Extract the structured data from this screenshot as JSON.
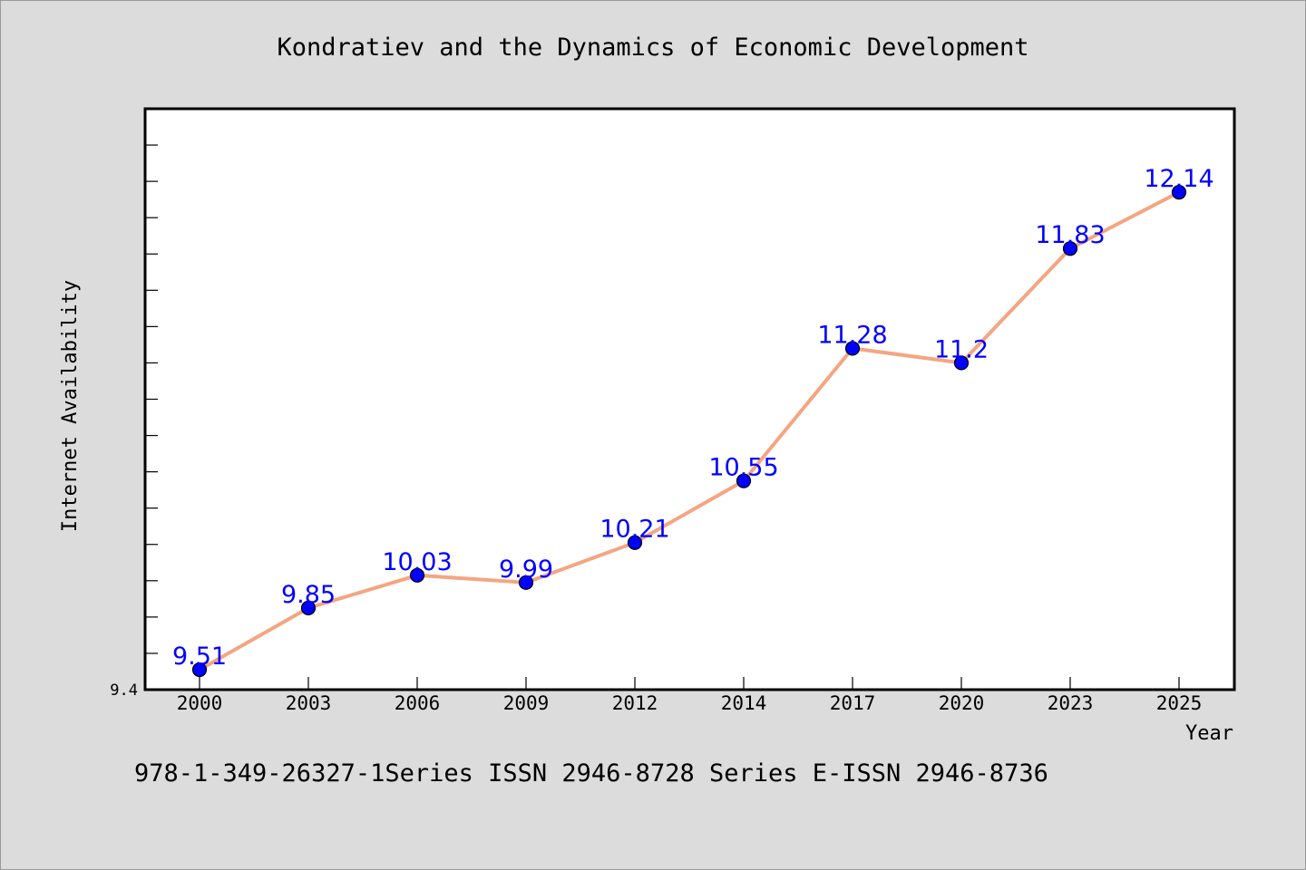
{
  "chart_data": {
    "type": "line",
    "title": "Kondratiev and the Dynamics of Economic Development",
    "xlabel": "Year",
    "ylabel": "Internet Availability",
    "categories": [
      "2000",
      "2003",
      "2006",
      "2009",
      "2012",
      "2014",
      "2017",
      "2020",
      "2023",
      "2025"
    ],
    "series": [
      {
        "values": [
          9.51,
          9.85,
          10.03,
          9.99,
          10.21,
          10.55,
          11.28,
          11.2,
          11.83,
          12.14
        ],
        "labels": [
          "9.51",
          "9.85",
          "10.03",
          "9.99",
          "10.21",
          "10.55",
          "11.28",
          "11.2",
          "11.83",
          "12.14"
        ]
      }
    ],
    "ylim": [
      9.4,
      12.6
    ],
    "yticks_labeled": [
      "9.4"
    ],
    "minor_tick_step": 0.2,
    "grid": false,
    "colors": {
      "line": "#f4a582",
      "marker": "#0000ff",
      "label": "#0000ff"
    }
  },
  "footnote": "978-1-349-26327-1Series ISSN 2946-8728 Series E-ISSN 2946-8736"
}
